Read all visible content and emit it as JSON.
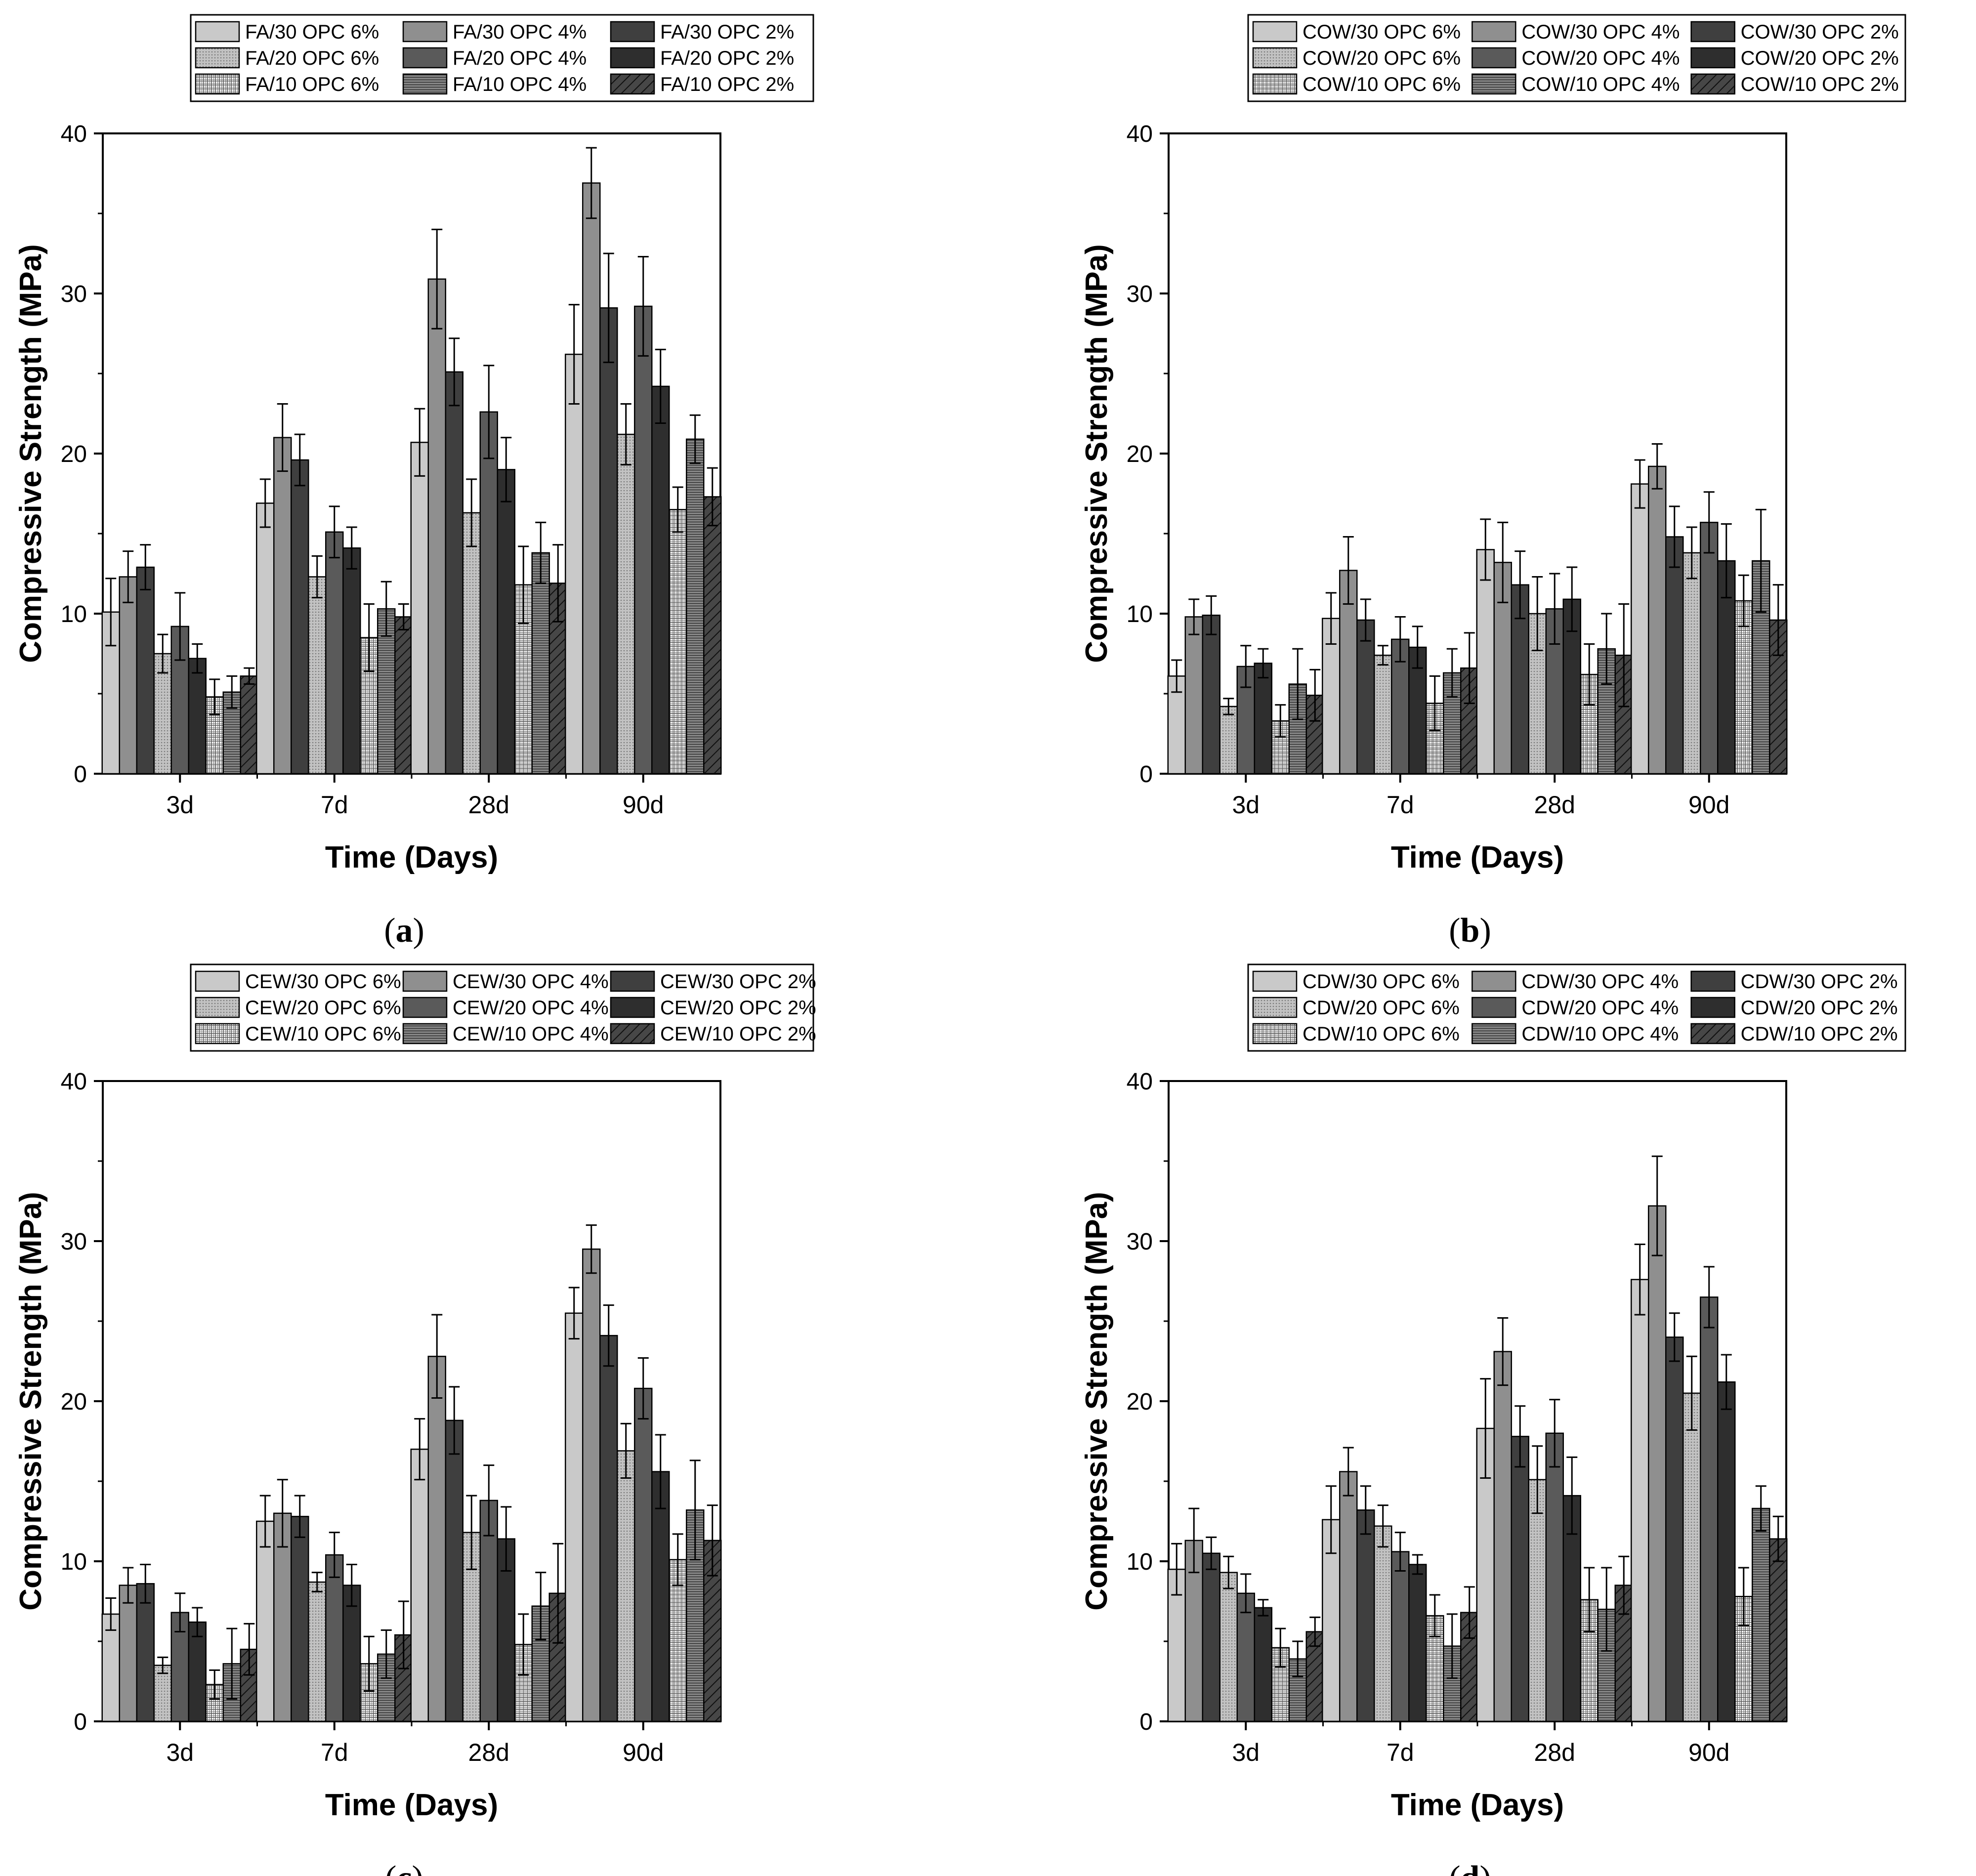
{
  "chart_data": [
    {
      "type": "bar",
      "panel_label": "(a)",
      "panel_letter": "a",
      "xlabel": "Time (Days)",
      "ylabel": "Compressive Strength (MPa)",
      "ylim": [
        0,
        40
      ],
      "yticks": [
        0,
        10,
        20,
        30,
        40
      ],
      "categories": [
        "3d",
        "7d",
        "28d",
        "90d"
      ],
      "legend_position": "top",
      "series": [
        {
          "name": "FA/30 OPC 6%",
          "values": [
            10.1,
            16.9,
            20.7,
            26.2
          ],
          "errors": [
            2.1,
            1.5,
            2.1,
            3.1
          ]
        },
        {
          "name": "FA/30 OPC 4%",
          "values": [
            12.3,
            21.0,
            30.9,
            36.9
          ],
          "errors": [
            1.6,
            2.1,
            3.1,
            2.2
          ]
        },
        {
          "name": "FA/30 OPC 2%",
          "values": [
            12.9,
            19.6,
            25.1,
            29.1
          ],
          "errors": [
            1.4,
            1.6,
            2.1,
            3.4
          ]
        },
        {
          "name": "FA/20 OPC 6%",
          "values": [
            7.5,
            12.3,
            16.3,
            21.2
          ],
          "errors": [
            1.2,
            1.3,
            2.1,
            1.9
          ]
        },
        {
          "name": "FA/20 OPC 4%",
          "values": [
            9.2,
            15.1,
            22.6,
            29.2
          ],
          "errors": [
            2.1,
            1.6,
            2.9,
            3.1
          ]
        },
        {
          "name": "FA/20 OPC 2%",
          "values": [
            7.2,
            14.1,
            19.0,
            24.2
          ],
          "errors": [
            0.9,
            1.3,
            2.0,
            2.3
          ]
        },
        {
          "name": "FA/10 OPC 6%",
          "values": [
            4.8,
            8.5,
            11.8,
            16.5
          ],
          "errors": [
            1.1,
            2.1,
            2.4,
            1.4
          ]
        },
        {
          "name": "FA/10 OPC 4%",
          "values": [
            5.1,
            10.3,
            13.8,
            20.9
          ],
          "errors": [
            1.0,
            1.7,
            1.9,
            1.5
          ]
        },
        {
          "name": "FA/10 OPC 2%",
          "values": [
            6.1,
            9.8,
            11.9,
            17.3
          ],
          "errors": [
            0.5,
            0.8,
            2.4,
            1.8
          ]
        }
      ]
    },
    {
      "type": "bar",
      "panel_label": "(b)",
      "panel_letter": "b",
      "xlabel": "Time (Days)",
      "ylabel": "Compressive Strength (MPa)",
      "ylim": [
        0,
        40
      ],
      "yticks": [
        0,
        10,
        20,
        30,
        40
      ],
      "categories": [
        "3d",
        "7d",
        "28d",
        "90d"
      ],
      "legend_position": "top",
      "series": [
        {
          "name": "COW/30 OPC 6%",
          "values": [
            6.1,
            9.7,
            14.0,
            18.1
          ],
          "errors": [
            1.0,
            1.6,
            1.9,
            1.5
          ]
        },
        {
          "name": "COW/30 OPC 4%",
          "values": [
            9.8,
            12.7,
            13.2,
            19.2
          ],
          "errors": [
            1.1,
            2.1,
            2.5,
            1.4
          ]
        },
        {
          "name": "COW/30 OPC 2%",
          "values": [
            9.9,
            9.6,
            11.8,
            14.8
          ],
          "errors": [
            1.2,
            1.3,
            2.1,
            1.9
          ]
        },
        {
          "name": "COW/20 OPC 6%",
          "values": [
            4.2,
            7.4,
            10.0,
            13.8
          ],
          "errors": [
            0.5,
            0.6,
            2.3,
            1.6
          ]
        },
        {
          "name": "COW/20 OPC 4%",
          "values": [
            6.7,
            8.4,
            10.3,
            15.7
          ],
          "errors": [
            1.3,
            1.4,
            2.2,
            1.9
          ]
        },
        {
          "name": "COW/20 OPC 2%",
          "values": [
            6.9,
            7.9,
            10.9,
            13.3
          ],
          "errors": [
            0.9,
            1.3,
            2.0,
            2.3
          ]
        },
        {
          "name": "COW/10 OPC 6%",
          "values": [
            3.3,
            4.4,
            6.2,
            10.8
          ],
          "errors": [
            1.0,
            1.7,
            1.9,
            1.6
          ]
        },
        {
          "name": "COW/10 OPC 4%",
          "values": [
            5.6,
            6.3,
            7.8,
            13.3
          ],
          "errors": [
            2.2,
            1.5,
            2.2,
            3.2
          ]
        },
        {
          "name": "COW/10 OPC 2%",
          "values": [
            4.9,
            6.6,
            7.4,
            9.6
          ],
          "errors": [
            1.6,
            2.2,
            3.2,
            2.2
          ]
        }
      ]
    },
    {
      "type": "bar",
      "panel_label": "(c)",
      "panel_letter": "c",
      "xlabel": "Time (Days)",
      "ylabel": "Compressive Strength (MPa)",
      "ylim": [
        0,
        40
      ],
      "yticks": [
        0,
        10,
        20,
        30,
        40
      ],
      "categories": [
        "3d",
        "7d",
        "28d",
        "90d"
      ],
      "legend_position": "top",
      "series": [
        {
          "name": "CEW/30 OPC 6%",
          "values": [
            6.7,
            12.5,
            17.0,
            25.5
          ],
          "errors": [
            1.0,
            1.6,
            1.9,
            1.6
          ]
        },
        {
          "name": "CEW/30 OPC 4%",
          "values": [
            8.5,
            13.0,
            22.8,
            29.5
          ],
          "errors": [
            1.1,
            2.1,
            2.6,
            1.5
          ]
        },
        {
          "name": "CEW/30 OPC 2%",
          "values": [
            8.6,
            12.8,
            18.8,
            24.1
          ],
          "errors": [
            1.2,
            1.3,
            2.1,
            1.9
          ]
        },
        {
          "name": "CEW/20 OPC 6%",
          "values": [
            3.5,
            8.7,
            11.8,
            16.9
          ],
          "errors": [
            0.5,
            0.6,
            2.3,
            1.7
          ]
        },
        {
          "name": "CEW/20 OPC 4%",
          "values": [
            6.8,
            10.4,
            13.8,
            20.8
          ],
          "errors": [
            1.2,
            1.4,
            2.2,
            1.9
          ]
        },
        {
          "name": "CEW/20 OPC 2%",
          "values": [
            6.2,
            8.5,
            11.4,
            15.6
          ],
          "errors": [
            0.9,
            1.3,
            2.0,
            2.3
          ]
        },
        {
          "name": "CEW/10 OPC 6%",
          "values": [
            2.3,
            3.6,
            4.8,
            10.1
          ],
          "errors": [
            0.9,
            1.7,
            1.9,
            1.6
          ]
        },
        {
          "name": "CEW/10 OPC 4%",
          "values": [
            3.6,
            4.2,
            7.2,
            13.2
          ],
          "errors": [
            2.2,
            1.5,
            2.1,
            3.1
          ]
        },
        {
          "name": "CEW/10 OPC 2%",
          "values": [
            4.5,
            5.4,
            8.0,
            11.3
          ],
          "errors": [
            1.6,
            2.1,
            3.1,
            2.2
          ]
        }
      ]
    },
    {
      "type": "bar",
      "panel_label": "(d)",
      "panel_letter": "d",
      "xlabel": "Time (Days)",
      "ylabel": "Compressive Strength (MPa)",
      "ylim": [
        0,
        40
      ],
      "yticks": [
        0,
        10,
        20,
        30,
        40
      ],
      "categories": [
        "3d",
        "7d",
        "28d",
        "90d"
      ],
      "legend_position": "top",
      "series": [
        {
          "name": "CDW/30 OPC 6%",
          "values": [
            9.5,
            12.6,
            18.3,
            27.6
          ],
          "errors": [
            1.6,
            2.1,
            3.1,
            2.2
          ]
        },
        {
          "name": "CDW/30 OPC 4%",
          "values": [
            11.3,
            15.6,
            23.1,
            32.2
          ],
          "errors": [
            2.0,
            1.5,
            2.1,
            3.1
          ]
        },
        {
          "name": "CDW/30 OPC 2%",
          "values": [
            10.5,
            13.2,
            17.8,
            24.0
          ],
          "errors": [
            1.0,
            1.5,
            1.9,
            1.5
          ]
        },
        {
          "name": "CDW/20 OPC 6%",
          "values": [
            9.3,
            12.2,
            15.1,
            20.5
          ],
          "errors": [
            1.0,
            1.3,
            2.1,
            2.3
          ]
        },
        {
          "name": "CDW/20 OPC 4%",
          "values": [
            8.0,
            10.6,
            18.0,
            26.5
          ],
          "errors": [
            1.2,
            1.2,
            2.1,
            1.9
          ]
        },
        {
          "name": "CDW/20 OPC 2%",
          "values": [
            7.1,
            9.8,
            14.1,
            21.2
          ],
          "errors": [
            0.5,
            0.6,
            2.4,
            1.7
          ]
        },
        {
          "name": "CDW/10 OPC 6%",
          "values": [
            4.6,
            6.6,
            7.6,
            7.8
          ],
          "errors": [
            1.2,
            1.3,
            2.0,
            1.8
          ]
        },
        {
          "name": "CDW/10 OPC 4%",
          "values": [
            3.9,
            4.7,
            7.0,
            13.3
          ],
          "errors": [
            1.1,
            2.0,
            2.6,
            1.4
          ]
        },
        {
          "name": "CDW/10 OPC 2%",
          "values": [
            5.6,
            6.8,
            8.5,
            11.4
          ],
          "errors": [
            0.9,
            1.6,
            1.8,
            1.4
          ]
        }
      ]
    }
  ]
}
